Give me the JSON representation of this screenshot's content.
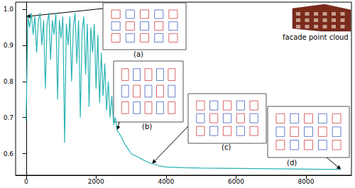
{
  "chart_data": {
    "type": "line",
    "color": "#2ab3b3",
    "x": [
      0,
      50,
      100,
      150,
      200,
      250,
      300,
      350,
      400,
      450,
      500,
      550,
      600,
      650,
      700,
      750,
      800,
      850,
      900,
      950,
      1000,
      1050,
      1100,
      1150,
      1200,
      1250,
      1300,
      1350,
      1400,
      1450,
      1500,
      1550,
      1600,
      1650,
      1700,
      1750,
      1800,
      1850,
      1900,
      1950,
      2000,
      2050,
      2100,
      2150,
      2200,
      2250,
      2300,
      2350,
      2400,
      2450,
      2500,
      2550,
      2600,
      2700,
      2800,
      2900,
      3000,
      3100,
      3200,
      3300,
      3400,
      3500,
      3600,
      3700,
      3800,
      4000,
      4500,
      5000,
      6000,
      7000,
      8000,
      9000
    ],
    "values": [
      0.69,
      0.98,
      0.95,
      0.99,
      0.93,
      0.98,
      0.88,
      0.97,
      0.99,
      0.9,
      0.97,
      0.78,
      0.96,
      0.99,
      0.86,
      0.97,
      0.93,
      0.99,
      0.75,
      0.97,
      0.92,
      0.98,
      0.63,
      0.96,
      0.9,
      0.98,
      0.8,
      0.95,
      0.99,
      0.85,
      0.97,
      0.7,
      0.94,
      0.98,
      0.82,
      0.96,
      0.73,
      0.95,
      0.88,
      0.96,
      0.78,
      0.93,
      0.74,
      0.88,
      0.76,
      0.85,
      0.72,
      0.8,
      0.7,
      0.76,
      0.68,
      0.7,
      0.665,
      0.65,
      0.63,
      0.615,
      0.6,
      0.595,
      0.59,
      0.585,
      0.58,
      0.575,
      0.572,
      0.57,
      0.566,
      0.563,
      0.561,
      0.56,
      0.559,
      0.558,
      0.557,
      0.556
    ],
    "xlim": [
      -300,
      9300
    ],
    "xticks": [
      0,
      2000,
      4000,
      6000,
      8000
    ],
    "ylim": [
      0.54,
      1.02
    ],
    "yticks": [
      {
        "value": 0.6,
        "label": "0.6"
      },
      {
        "value": 0.7,
        "label": "0.7"
      },
      {
        "value": 0.8,
        "label": "0.8"
      },
      {
        "value": 0.9,
        "label": "0.9"
      },
      {
        "value": 1,
        "label": "1.0"
      }
    ],
    "grid": false,
    "annotations": [
      {
        "text": "(a)",
        "x": 0,
        "y": 0.98
      },
      {
        "text": "(b)",
        "x": 2600,
        "y": 0.665
      },
      {
        "text": "(c)",
        "x": 3600,
        "y": 0.572
      },
      {
        "text": "(d)",
        "x": 9000,
        "y": 0.556
      }
    ],
    "inset_label": "facade point cloud"
  }
}
